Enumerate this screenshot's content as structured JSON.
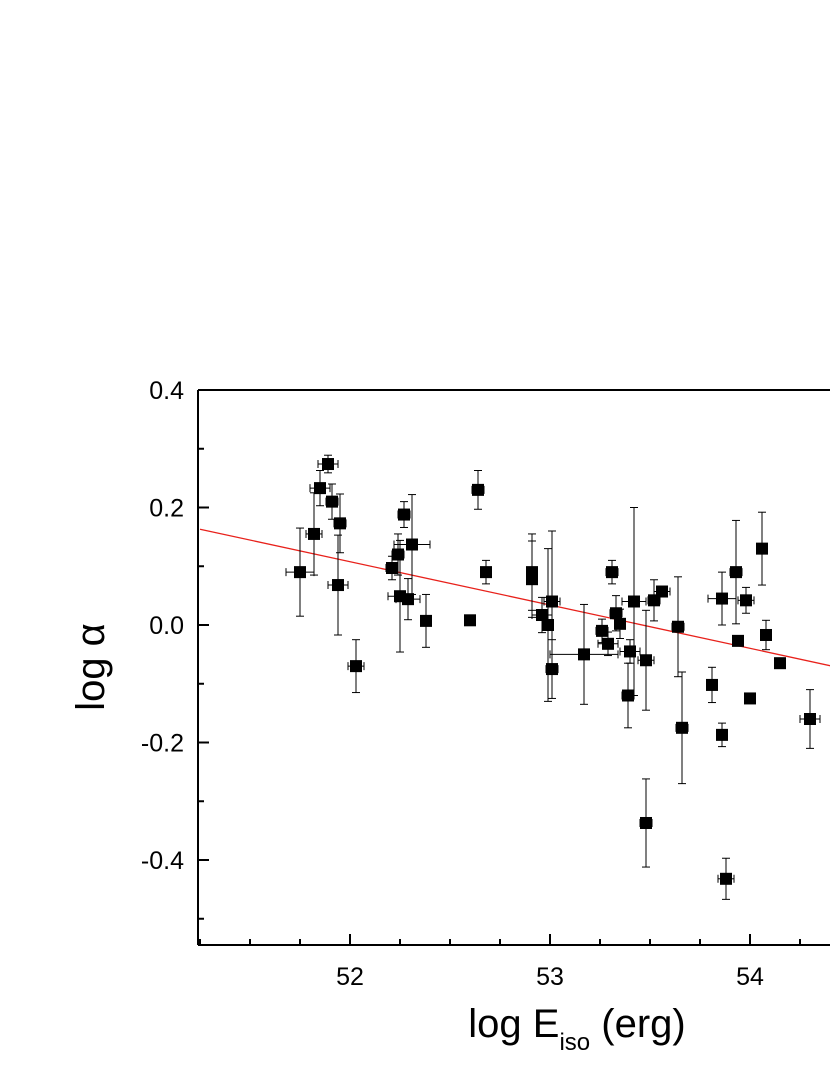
{
  "chart_data": {
    "type": "scatter",
    "title": "",
    "xlabel": {
      "main": "log E",
      "sub": "iso",
      "unit": " (erg)"
    },
    "ylabel": {
      "main": "log ",
      "symbol": "α"
    },
    "xlim": [
      51.25,
      54.75
    ],
    "ylim": [
      -0.55,
      0.4
    ],
    "xticks": [
      52,
      53,
      54
    ],
    "xtick_labels": [
      "52",
      "53",
      "54"
    ],
    "yticks": [
      0.4,
      0.2,
      0.0,
      -0.2,
      -0.4
    ],
    "ytick_labels": [
      "0.4",
      "0.2",
      "0.0",
      "-0.2",
      "-0.4"
    ],
    "grid": false,
    "fit_line": {
      "x": [
        51.25,
        54.75
      ],
      "y": [
        0.163,
        -0.095
      ],
      "color": "#e8211b"
    },
    "marker_color": "#000000",
    "points": [
      {
        "x": 51.75,
        "y": 0.09,
        "xerr": 0.07,
        "yerr": 0.075
      },
      {
        "x": 51.82,
        "y": 0.155,
        "xerr": 0.04,
        "yerr": 0.07
      },
      {
        "x": 51.85,
        "y": 0.233,
        "xerr": 0.05,
        "yerr": 0.03
      },
      {
        "x": 51.89,
        "y": 0.274,
        "xerr": 0.05,
        "yerr": 0.015
      },
      {
        "x": 51.91,
        "y": 0.21,
        "xerr": 0.03,
        "yerr": 0.03
      },
      {
        "x": 51.95,
        "y": 0.173,
        "xerr": 0.03,
        "yerr": 0.05
      },
      {
        "x": 51.94,
        "y": 0.068,
        "xerr": 0.05,
        "yerr": 0.085
      },
      {
        "x": 52.03,
        "y": -0.07,
        "xerr": 0.04,
        "yerr": 0.045
      },
      {
        "x": 52.21,
        "y": 0.097,
        "xerr": 0.03,
        "yerr": 0.02
      },
      {
        "x": 52.24,
        "y": 0.12,
        "xerr": 0.03,
        "yerr": 0.035
      },
      {
        "x": 52.27,
        "y": 0.188,
        "xerr": 0.03,
        "yerr": 0.022
      },
      {
        "x": 52.25,
        "y": 0.049,
        "xerr": 0.06,
        "yerr": 0.095
      },
      {
        "x": 52.29,
        "y": 0.044,
        "xerr": 0.06,
        "yerr": 0.035
      },
      {
        "x": 52.31,
        "y": 0.137,
        "xerr": 0.09,
        "yerr": 0.085
      },
      {
        "x": 52.38,
        "y": 0.007,
        "xerr": 0.02,
        "yerr": 0.045
      },
      {
        "x": 52.6,
        "y": 0.008,
        "xerr": 0.02,
        "yerr": 0.008
      },
      {
        "x": 52.64,
        "y": 0.23,
        "xerr": 0.03,
        "yerr": 0.033
      },
      {
        "x": 52.68,
        "y": 0.09,
        "xerr": 0.02,
        "yerr": 0.02
      },
      {
        "x": 52.91,
        "y": 0.09,
        "xerr": 0.01,
        "yerr": 0.065
      },
      {
        "x": 52.91,
        "y": 0.078,
        "xerr": 0.01,
        "yerr": 0.065
      },
      {
        "x": 52.96,
        "y": 0.017,
        "xerr": 0.05,
        "yerr": 0.03
      },
      {
        "x": 52.99,
        "y": 0.0,
        "xerr": 0.02,
        "yerr": 0.13
      },
      {
        "x": 53.01,
        "y": -0.075,
        "xerr": 0.03,
        "yerr": 0.05
      },
      {
        "x": 53.01,
        "y": 0.04,
        "xerr": 0.04,
        "yerr": 0.12
      },
      {
        "x": 53.17,
        "y": -0.05,
        "xerr": 0.17,
        "yerr": 0.085
      },
      {
        "x": 53.26,
        "y": -0.01,
        "xerr": 0.03,
        "yerr": 0.02
      },
      {
        "x": 53.29,
        "y": -0.032,
        "xerr": 0.05,
        "yerr": 0.02
      },
      {
        "x": 53.31,
        "y": 0.09,
        "xerr": 0.03,
        "yerr": 0.02
      },
      {
        "x": 53.33,
        "y": 0.02,
        "xerr": 0.03,
        "yerr": 0.03
      },
      {
        "x": 53.35,
        "y": 0.002,
        "xerr": 0.02,
        "yerr": 0.025
      },
      {
        "x": 53.39,
        "y": -0.12,
        "xerr": 0.03,
        "yerr": 0.055
      },
      {
        "x": 53.4,
        "y": -0.045,
        "xerr": 0.05,
        "yerr": 0.02
      },
      {
        "x": 53.42,
        "y": 0.04,
        "xerr": 0.06,
        "yerr": 0.16
      },
      {
        "x": 53.48,
        "y": -0.06,
        "xerr": 0.04,
        "yerr": 0.085
      },
      {
        "x": 53.48,
        "y": -0.337,
        "xerr": 0.03,
        "yerr": 0.075
      },
      {
        "x": 53.52,
        "y": 0.042,
        "xerr": 0.03,
        "yerr": 0.035
      },
      {
        "x": 53.56,
        "y": 0.057,
        "xerr": 0.04,
        "yerr": 0.008
      },
      {
        "x": 53.64,
        "y": -0.003,
        "xerr": 0.03,
        "yerr": 0.085
      },
      {
        "x": 53.66,
        "y": -0.175,
        "xerr": 0.03,
        "yerr": 0.095
      },
      {
        "x": 53.81,
        "y": -0.102,
        "xerr": 0.01,
        "yerr": 0.03
      },
      {
        "x": 53.86,
        "y": 0.045,
        "xerr": 0.07,
        "yerr": 0.045
      },
      {
        "x": 53.86,
        "y": -0.187,
        "xerr": 0.01,
        "yerr": 0.02
      },
      {
        "x": 53.88,
        "y": -0.432,
        "xerr": 0.04,
        "yerr": 0.035
      },
      {
        "x": 53.93,
        "y": 0.09,
        "xerr": 0.03,
        "yerr": 0.088
      },
      {
        "x": 53.94,
        "y": -0.027,
        "xerr": 0.02,
        "yerr": 0.007
      },
      {
        "x": 53.98,
        "y": 0.042,
        "xerr": 0.04,
        "yerr": 0.022
      },
      {
        "x": 54.0,
        "y": -0.125,
        "xerr": 0.01,
        "yerr": 0.008
      },
      {
        "x": 54.06,
        "y": 0.13,
        "xerr": 0.01,
        "yerr": 0.062
      },
      {
        "x": 54.08,
        "y": -0.017,
        "xerr": 0.02,
        "yerr": 0.025
      },
      {
        "x": 54.15,
        "y": -0.065,
        "xerr": 0.02,
        "yerr": 0.008
      },
      {
        "x": 54.3,
        "y": -0.16,
        "xerr": 0.05,
        "yerr": 0.05
      }
    ]
  }
}
